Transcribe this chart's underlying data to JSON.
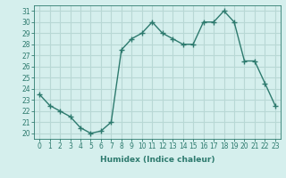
{
  "x": [
    0,
    1,
    2,
    3,
    4,
    5,
    6,
    7,
    8,
    9,
    10,
    11,
    12,
    13,
    14,
    15,
    16,
    17,
    18,
    19,
    20,
    21,
    22,
    23
  ],
  "y": [
    23.5,
    22.5,
    22.0,
    21.5,
    20.5,
    20.0,
    20.2,
    21.0,
    27.5,
    28.5,
    29.0,
    30.0,
    29.0,
    28.5,
    28.0,
    28.0,
    30.0,
    30.0,
    31.0,
    30.0,
    26.5,
    26.5,
    24.5,
    22.5
  ],
  "line_color": "#2d7a6e",
  "marker": "+",
  "marker_size": 4,
  "marker_lw": 1.0,
  "bg_color": "#d5efed",
  "grid_color": "#b8d8d5",
  "xlabel": "Humidex (Indice chaleur)",
  "ylabel": "",
  "ylim": [
    19.5,
    31.5
  ],
  "xlim": [
    -0.5,
    23.5
  ],
  "yticks": [
    20,
    21,
    22,
    23,
    24,
    25,
    26,
    27,
    28,
    29,
    30,
    31
  ],
  "xticks": [
    0,
    1,
    2,
    3,
    4,
    5,
    6,
    7,
    8,
    9,
    10,
    11,
    12,
    13,
    14,
    15,
    16,
    17,
    18,
    19,
    20,
    21,
    22,
    23
  ],
  "label_fontsize": 6.5,
  "tick_fontsize": 5.5,
  "line_width": 1.0
}
